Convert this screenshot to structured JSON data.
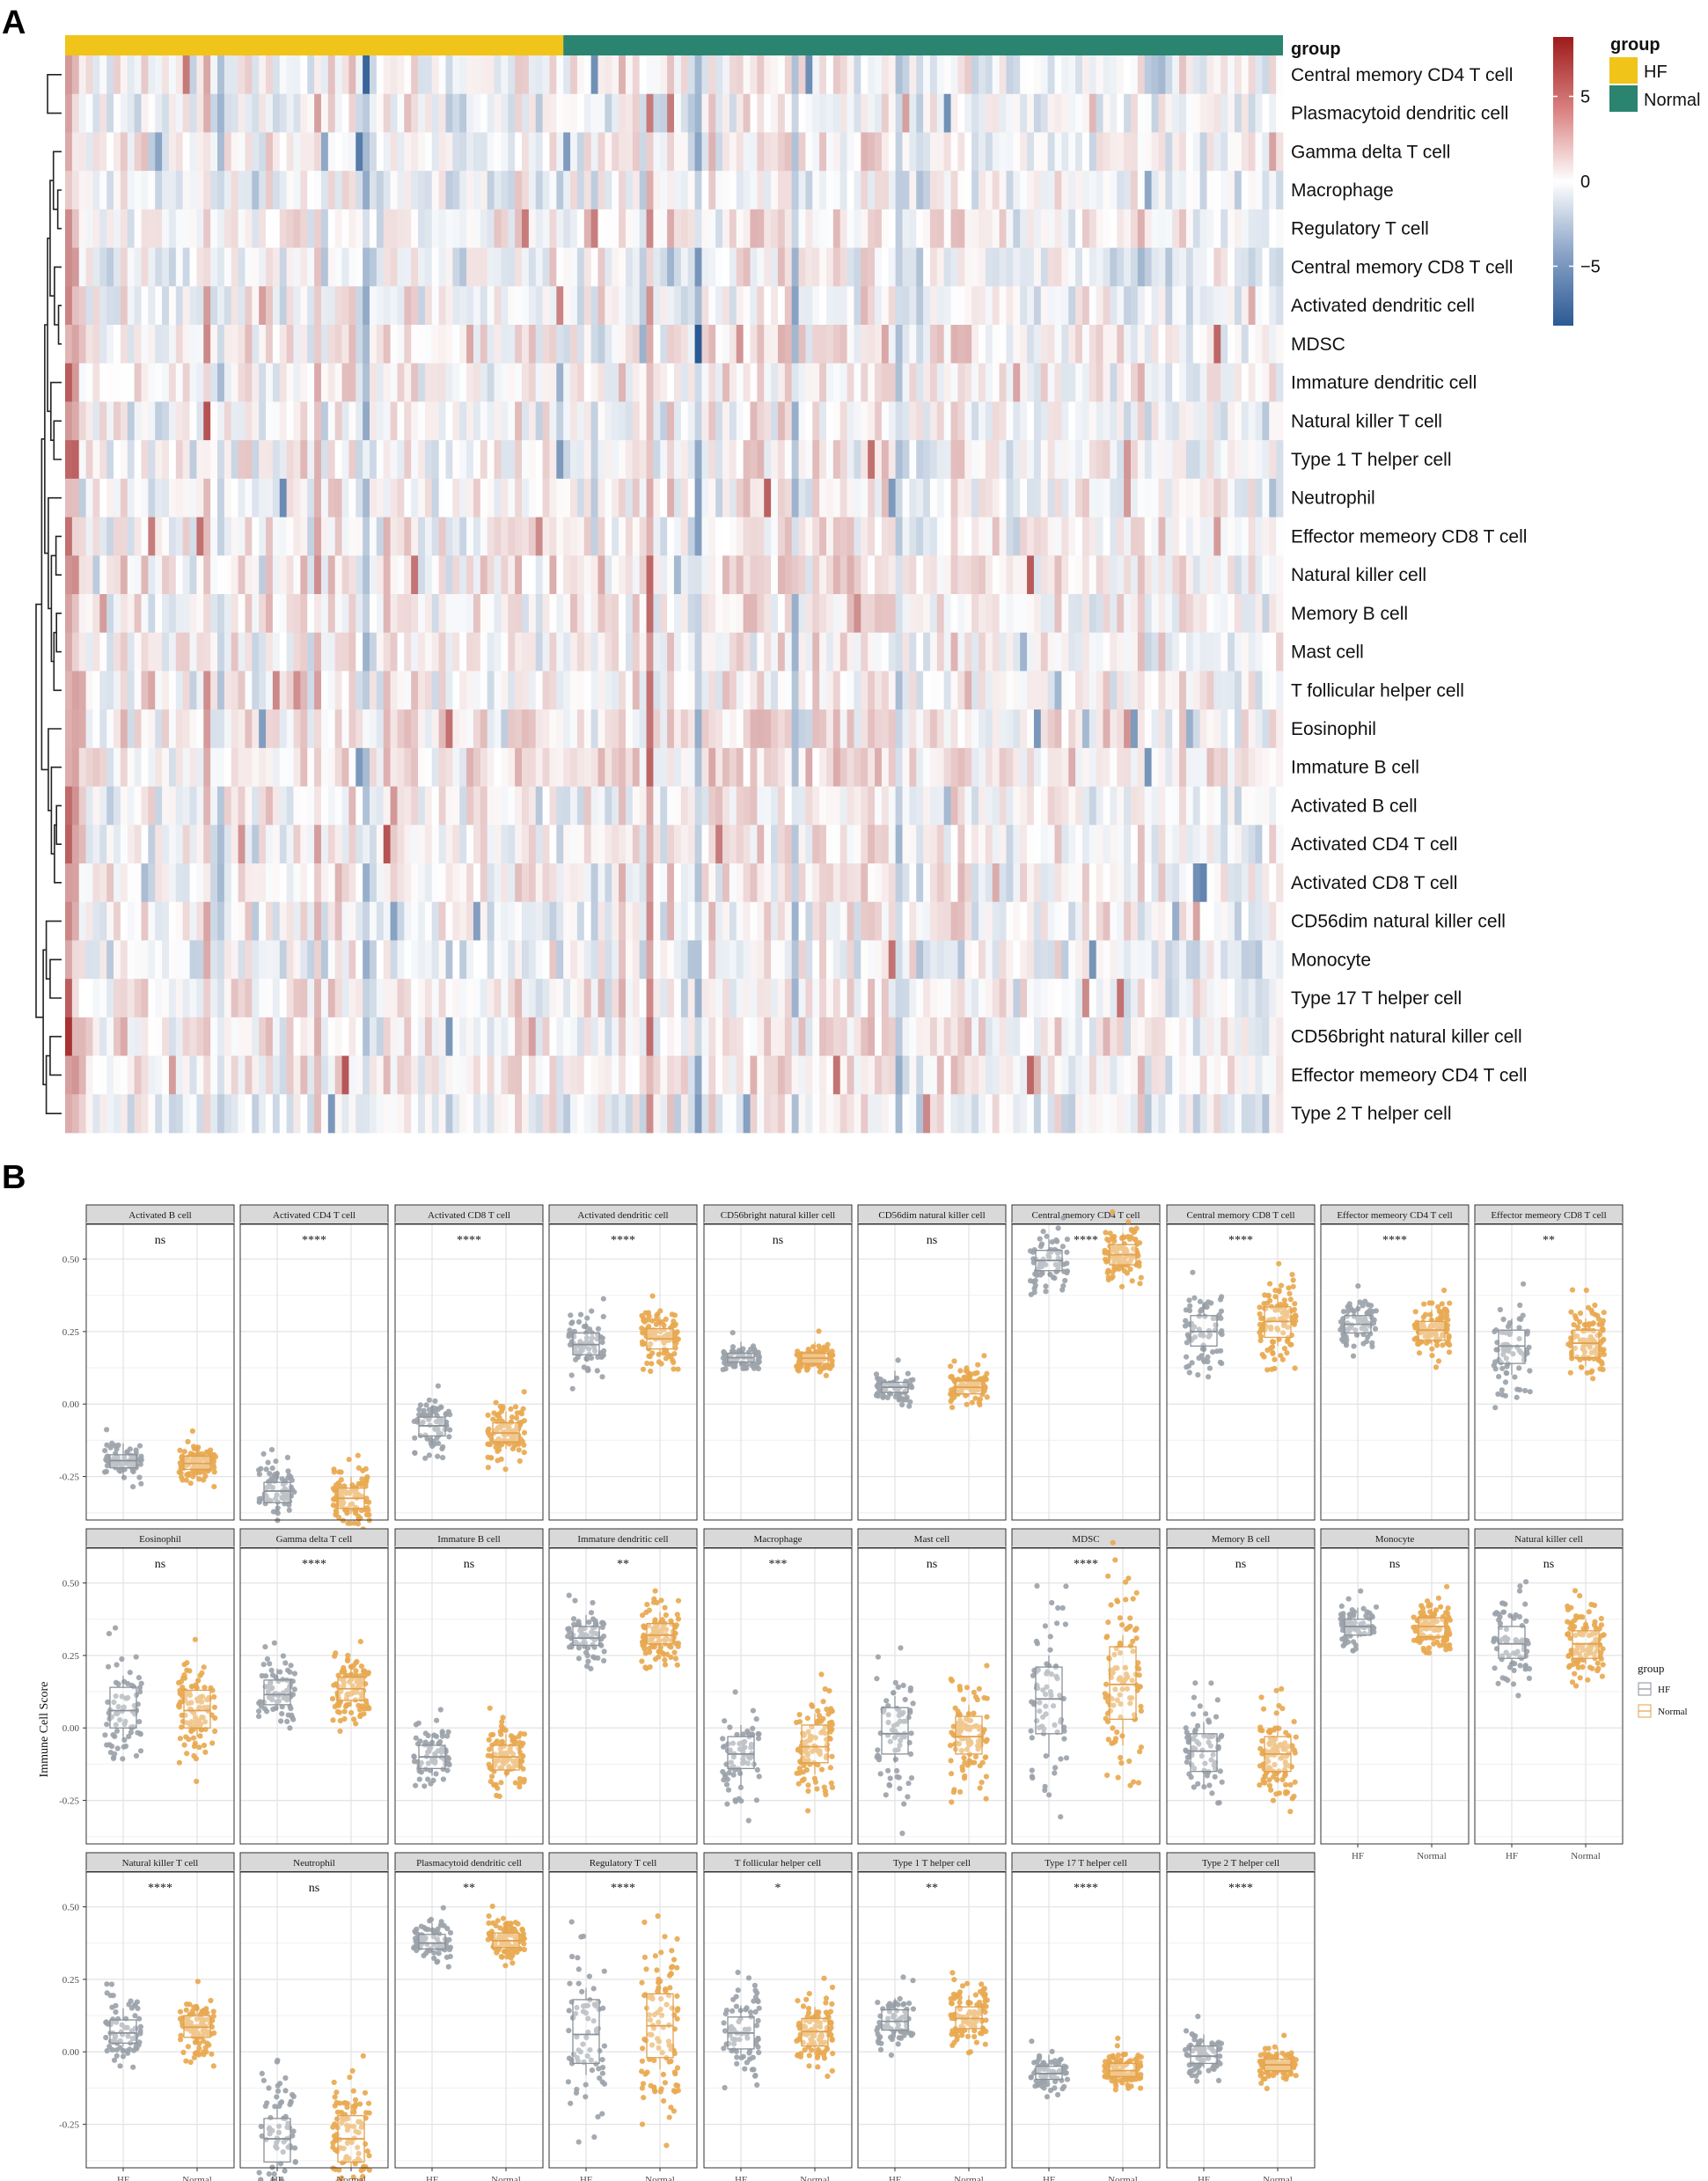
{
  "panel_a": {
    "label": "A",
    "annotation_title": "group",
    "legend": {
      "title": "group",
      "items": [
        {
          "label": "HF",
          "color": "#F0C419"
        },
        {
          "label": "Normal",
          "color": "#2A8470"
        }
      ]
    },
    "colorbar": {
      "ticks": [
        {
          "label": "5",
          "value": 5
        },
        {
          "label": "0",
          "value": 0
        },
        {
          "label": "−5",
          "value": -5
        }
      ],
      "range": [
        -8.5,
        8.5
      ],
      "colors": {
        "low": "#2B5A93",
        "mid": "#FFFFFF",
        "high": "#9E1B1B"
      }
    }
  },
  "panel_b": {
    "label": "B",
    "y_axis_title": "Immune Cell Score",
    "ylim": [
      -0.4,
      0.62
    ],
    "ytick_labels": [
      "0.50",
      "0.25",
      "0.00",
      "-0.25"
    ],
    "yticks": [
      0.5,
      0.25,
      0.0,
      -0.25
    ],
    "x_categories": [
      "HF",
      "Normal"
    ],
    "legend": {
      "title": "group",
      "items": [
        {
          "label": "HF",
          "color": "#8A9199"
        },
        {
          "label": "Normal",
          "color": "#E2A04F"
        }
      ]
    }
  },
  "chart_data": [
    {
      "type": "heatmap",
      "title": "",
      "rows": [
        "Central memory CD4 T cell",
        "Plasmacytoid dendritic cell",
        "Gamma delta T cell",
        "Macrophage",
        "Regulatory T cell",
        "Central memory CD8 T cell",
        "Activated dendritic cell",
        "MDSC",
        "Immature dendritic cell",
        "Natural killer T cell",
        "Type 1 T helper cell",
        "Neutrophil",
        "Effector memeory CD8 T cell",
        "Natural killer cell",
        "Memory B cell",
        "Mast cell",
        "T follicular helper cell",
        "Eosinophil",
        "Immature  B cell",
        "Activated B cell",
        "Activated CD4 T cell",
        "Activated CD8 T cell",
        "CD56dim natural killer cell",
        "Monocyte",
        "Type 17 T helper cell",
        "CD56bright natural killer cell",
        "Effector memeory CD4 T cell",
        "Type 2 T helper cell"
      ],
      "column_groups": [
        {
          "name": "HF",
          "n_columns": 72
        },
        {
          "name": "Normal",
          "n_columns": 104
        }
      ],
      "value_range": [
        -8.5,
        8.5
      ]
    },
    {
      "type": "box",
      "groups": [
        "HF",
        "Normal"
      ],
      "ylabel": "Immune Cell Score",
      "ylim": [
        -0.4,
        0.62
      ],
      "panels": [
        {
          "cell": "Activated B cell",
          "sig": "ns",
          "HF": [
            -0.22,
            -0.175,
            -0.195,
            -0.23,
            -0.255
          ],
          "Normal": [
            -0.225,
            -0.18,
            -0.205,
            -0.235,
            -0.265
          ]
        },
        {
          "cell": "Activated CD4 T cell",
          "sig": "****",
          "HF": [
            -0.34,
            -0.27,
            -0.3,
            -0.325,
            -0.37
          ],
          "Normal": [
            -0.36,
            -0.29,
            -0.325,
            -0.345,
            -0.38
          ]
        },
        {
          "cell": "Activated CD8 T cell",
          "sig": "****",
          "HF": [
            -0.11,
            -0.045,
            -0.075,
            -0.095,
            -0.14
          ],
          "Normal": [
            -0.13,
            -0.065,
            -0.1,
            -0.115,
            -0.155
          ]
        },
        {
          "cell": "Activated dendritic cell",
          "sig": "****",
          "HF": [
            0.17,
            0.245,
            0.205,
            0.19,
            0.15
          ],
          "Normal": [
            0.19,
            0.26,
            0.225,
            0.21,
            0.17
          ]
        },
        {
          "cell": "CD56bright natural killer cell",
          "sig": "ns",
          "HF": [
            0.145,
            0.175,
            0.16,
            0.155,
            0.135
          ],
          "Normal": [
            0.14,
            0.175,
            0.158,
            0.15,
            0.13
          ]
        },
        {
          "cell": "CD56dim natural killer cell",
          "sig": "ns",
          "HF": [
            0.04,
            0.075,
            0.058,
            0.05,
            0.03
          ],
          "Normal": [
            0.035,
            0.08,
            0.058,
            0.047,
            0.025
          ]
        },
        {
          "cell": "Central memory CD4 T cell",
          "sig": "****",
          "HF": [
            0.46,
            0.53,
            0.495,
            0.48,
            0.44
          ],
          "Normal": [
            0.48,
            0.55,
            0.515,
            0.5,
            0.46
          ]
        },
        {
          "cell": "Central memory CD8 T cell",
          "sig": "****",
          "HF": [
            0.2,
            0.305,
            0.25,
            0.23,
            0.17
          ],
          "Normal": [
            0.23,
            0.335,
            0.285,
            0.26,
            0.2
          ]
        },
        {
          "cell": "Effector memeory CD4 T cell",
          "sig": "****",
          "HF": [
            0.245,
            0.305,
            0.275,
            0.26,
            0.23
          ],
          "Normal": [
            0.22,
            0.285,
            0.255,
            0.24,
            0.205
          ]
        },
        {
          "cell": "Effector memeory CD8 T cell",
          "sig": "**",
          "HF": [
            0.14,
            0.255,
            0.2,
            0.18,
            0.1
          ],
          "Normal": [
            0.16,
            0.255,
            0.21,
            0.19,
            0.13
          ]
        },
        {
          "cell": "Eosinophil",
          "sig": "ns",
          "HF": [
            0.0,
            0.14,
            0.06,
            0.03,
            -0.04
          ],
          "Normal": [
            0.0,
            0.13,
            0.06,
            0.03,
            -0.03
          ]
        },
        {
          "cell": "Gamma delta T cell",
          "sig": "****",
          "HF": [
            0.08,
            0.165,
            0.115,
            0.1,
            0.06
          ],
          "Normal": [
            0.095,
            0.175,
            0.135,
            0.115,
            0.075
          ]
        },
        {
          "cell": "Immature  B cell",
          "sig": "ns",
          "HF": [
            -0.14,
            -0.06,
            -0.1,
            -0.115,
            -0.165
          ],
          "Normal": [
            -0.145,
            -0.06,
            -0.1,
            -0.12,
            -0.17
          ]
        },
        {
          "cell": "Immature dendritic cell",
          "sig": "**",
          "HF": [
            0.285,
            0.35,
            0.31,
            0.3,
            0.27
          ],
          "Normal": [
            0.29,
            0.36,
            0.32,
            0.305,
            0.275
          ]
        },
        {
          "cell": "Macrophage",
          "sig": "***",
          "HF": [
            -0.14,
            -0.03,
            -0.09,
            -0.12,
            -0.2
          ],
          "Normal": [
            -0.12,
            0.01,
            -0.065,
            -0.09,
            -0.16
          ]
        },
        {
          "cell": "Mast cell",
          "sig": "ns",
          "HF": [
            -0.09,
            0.07,
            -0.02,
            -0.05,
            -0.12
          ],
          "Normal": [
            -0.09,
            0.04,
            -0.03,
            -0.06,
            -0.13
          ]
        },
        {
          "cell": "MDSC",
          "sig": "****",
          "HF": [
            -0.02,
            0.21,
            0.1,
            0.05,
            -0.1
          ],
          "Normal": [
            0.03,
            0.28,
            0.15,
            0.1,
            -0.06
          ]
        },
        {
          "cell": "Memory B cell",
          "sig": "ns",
          "HF": [
            -0.15,
            -0.02,
            -0.08,
            -0.11,
            -0.2
          ],
          "Normal": [
            -0.15,
            -0.03,
            -0.09,
            -0.12,
            -0.19
          ]
        },
        {
          "cell": "Monocyte",
          "sig": "ns",
          "HF": [
            0.32,
            0.375,
            0.35,
            0.34,
            0.31
          ],
          "Normal": [
            0.315,
            0.38,
            0.35,
            0.335,
            0.305
          ]
        },
        {
          "cell": "Natural killer cell",
          "sig": "ns",
          "HF": [
            0.24,
            0.35,
            0.29,
            0.27,
            0.22
          ],
          "Normal": [
            0.24,
            0.335,
            0.29,
            0.27,
            0.22
          ]
        },
        {
          "cell": "Natural killer T cell",
          "sig": "****",
          "HF": [
            0.03,
            0.11,
            0.065,
            0.05,
            0.02
          ],
          "Normal": [
            0.05,
            0.125,
            0.085,
            0.07,
            0.03
          ]
        },
        {
          "cell": "Neutrophil",
          "sig": "ns",
          "HF": [
            -0.38,
            -0.23,
            -0.3,
            -0.33,
            -0.4
          ],
          "Normal": [
            -0.38,
            -0.22,
            -0.3,
            -0.33,
            -0.4
          ]
        },
        {
          "cell": "Plasmacytoid dendritic cell",
          "sig": "**",
          "HF": [
            0.355,
            0.405,
            0.375,
            0.365,
            0.345
          ],
          "Normal": [
            0.36,
            0.41,
            0.383,
            0.37,
            0.35
          ]
        },
        {
          "cell": "Regulatory T cell",
          "sig": "****",
          "HF": [
            -0.04,
            0.18,
            0.06,
            0.02,
            -0.08
          ],
          "Normal": [
            -0.02,
            0.2,
            0.09,
            0.05,
            -0.06
          ]
        },
        {
          "cell": "T follicular helper cell",
          "sig": "*",
          "HF": [
            0.01,
            0.12,
            0.065,
            0.04,
            -0.01
          ],
          "Normal": [
            0.02,
            0.115,
            0.07,
            0.05,
            -0.01
          ]
        },
        {
          "cell": "Type 1 T helper cell",
          "sig": "**",
          "HF": [
            0.075,
            0.145,
            0.105,
            0.09,
            0.06
          ],
          "Normal": [
            0.08,
            0.155,
            0.115,
            0.095,
            0.065
          ]
        },
        {
          "cell": "Type 17 T helper cell",
          "sig": "****",
          "HF": [
            -0.095,
            -0.05,
            -0.075,
            -0.085,
            -0.105
          ],
          "Normal": [
            -0.085,
            -0.04,
            -0.065,
            -0.075,
            -0.095
          ]
        },
        {
          "cell": "Type 2 T helper cell",
          "sig": "****",
          "HF": [
            -0.04,
            0.02,
            -0.015,
            -0.03,
            -0.055
          ],
          "Normal": [
            -0.065,
            -0.025,
            -0.045,
            -0.055,
            -0.075
          ]
        }
      ]
    }
  ]
}
